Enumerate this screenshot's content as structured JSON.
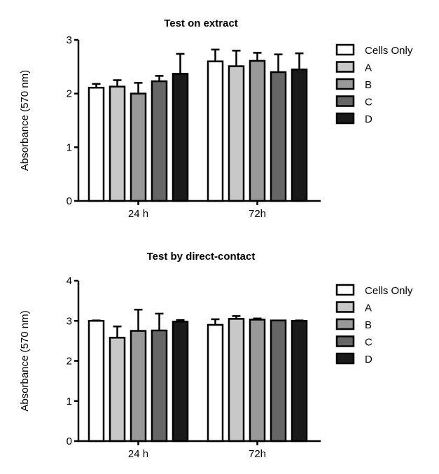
{
  "chart_data": [
    {
      "type": "bar",
      "title": "Test on extract",
      "xlabel": "",
      "ylabel": "Absorbance (570 nm)",
      "ylim": [
        0,
        3
      ],
      "yticks": [
        "0",
        "1",
        "2",
        "3"
      ],
      "categories": [
        "24 h",
        "72h"
      ],
      "legend_position": "right",
      "series": [
        {
          "name": "Cells Only",
          "color": "#ffffff",
          "values": [
            2.11,
            2.6
          ],
          "errors": [
            0.07,
            0.22
          ]
        },
        {
          "name": "A",
          "color": "#c8c8c8",
          "values": [
            2.13,
            2.51
          ],
          "errors": [
            0.12,
            0.29
          ]
        },
        {
          "name": "B",
          "color": "#999999",
          "values": [
            2.0,
            2.61
          ],
          "errors": [
            0.2,
            0.15
          ]
        },
        {
          "name": "C",
          "color": "#666666",
          "values": [
            2.23,
            2.4
          ],
          "errors": [
            0.1,
            0.33
          ]
        },
        {
          "name": "D",
          "color": "#1a1a1a",
          "values": [
            2.37,
            2.45
          ],
          "errors": [
            0.37,
            0.3
          ]
        }
      ]
    },
    {
      "type": "bar",
      "title": "Test by direct-contact",
      "xlabel": "",
      "ylabel": "Absorbance (570 nm)",
      "ylim": [
        0,
        4
      ],
      "yticks": [
        "0",
        "1",
        "2",
        "3",
        "4"
      ],
      "categories": [
        "24 h",
        "72h"
      ],
      "legend_position": "right",
      "series": [
        {
          "name": "Cells Only",
          "color": "#ffffff",
          "values": [
            3.0,
            2.9
          ],
          "errors": [
            0.01,
            0.14
          ]
        },
        {
          "name": "A",
          "color": "#c8c8c8",
          "values": [
            2.58,
            3.05
          ],
          "errors": [
            0.28,
            0.07
          ]
        },
        {
          "name": "B",
          "color": "#999999",
          "values": [
            2.75,
            3.03
          ],
          "errors": [
            0.53,
            0.03
          ]
        },
        {
          "name": "C",
          "color": "#666666",
          "values": [
            2.76,
            3.01
          ],
          "errors": [
            0.42,
            0.0
          ]
        },
        {
          "name": "D",
          "color": "#1a1a1a",
          "values": [
            2.98,
            3.0
          ],
          "errors": [
            0.04,
            0.01
          ]
        }
      ]
    }
  ]
}
